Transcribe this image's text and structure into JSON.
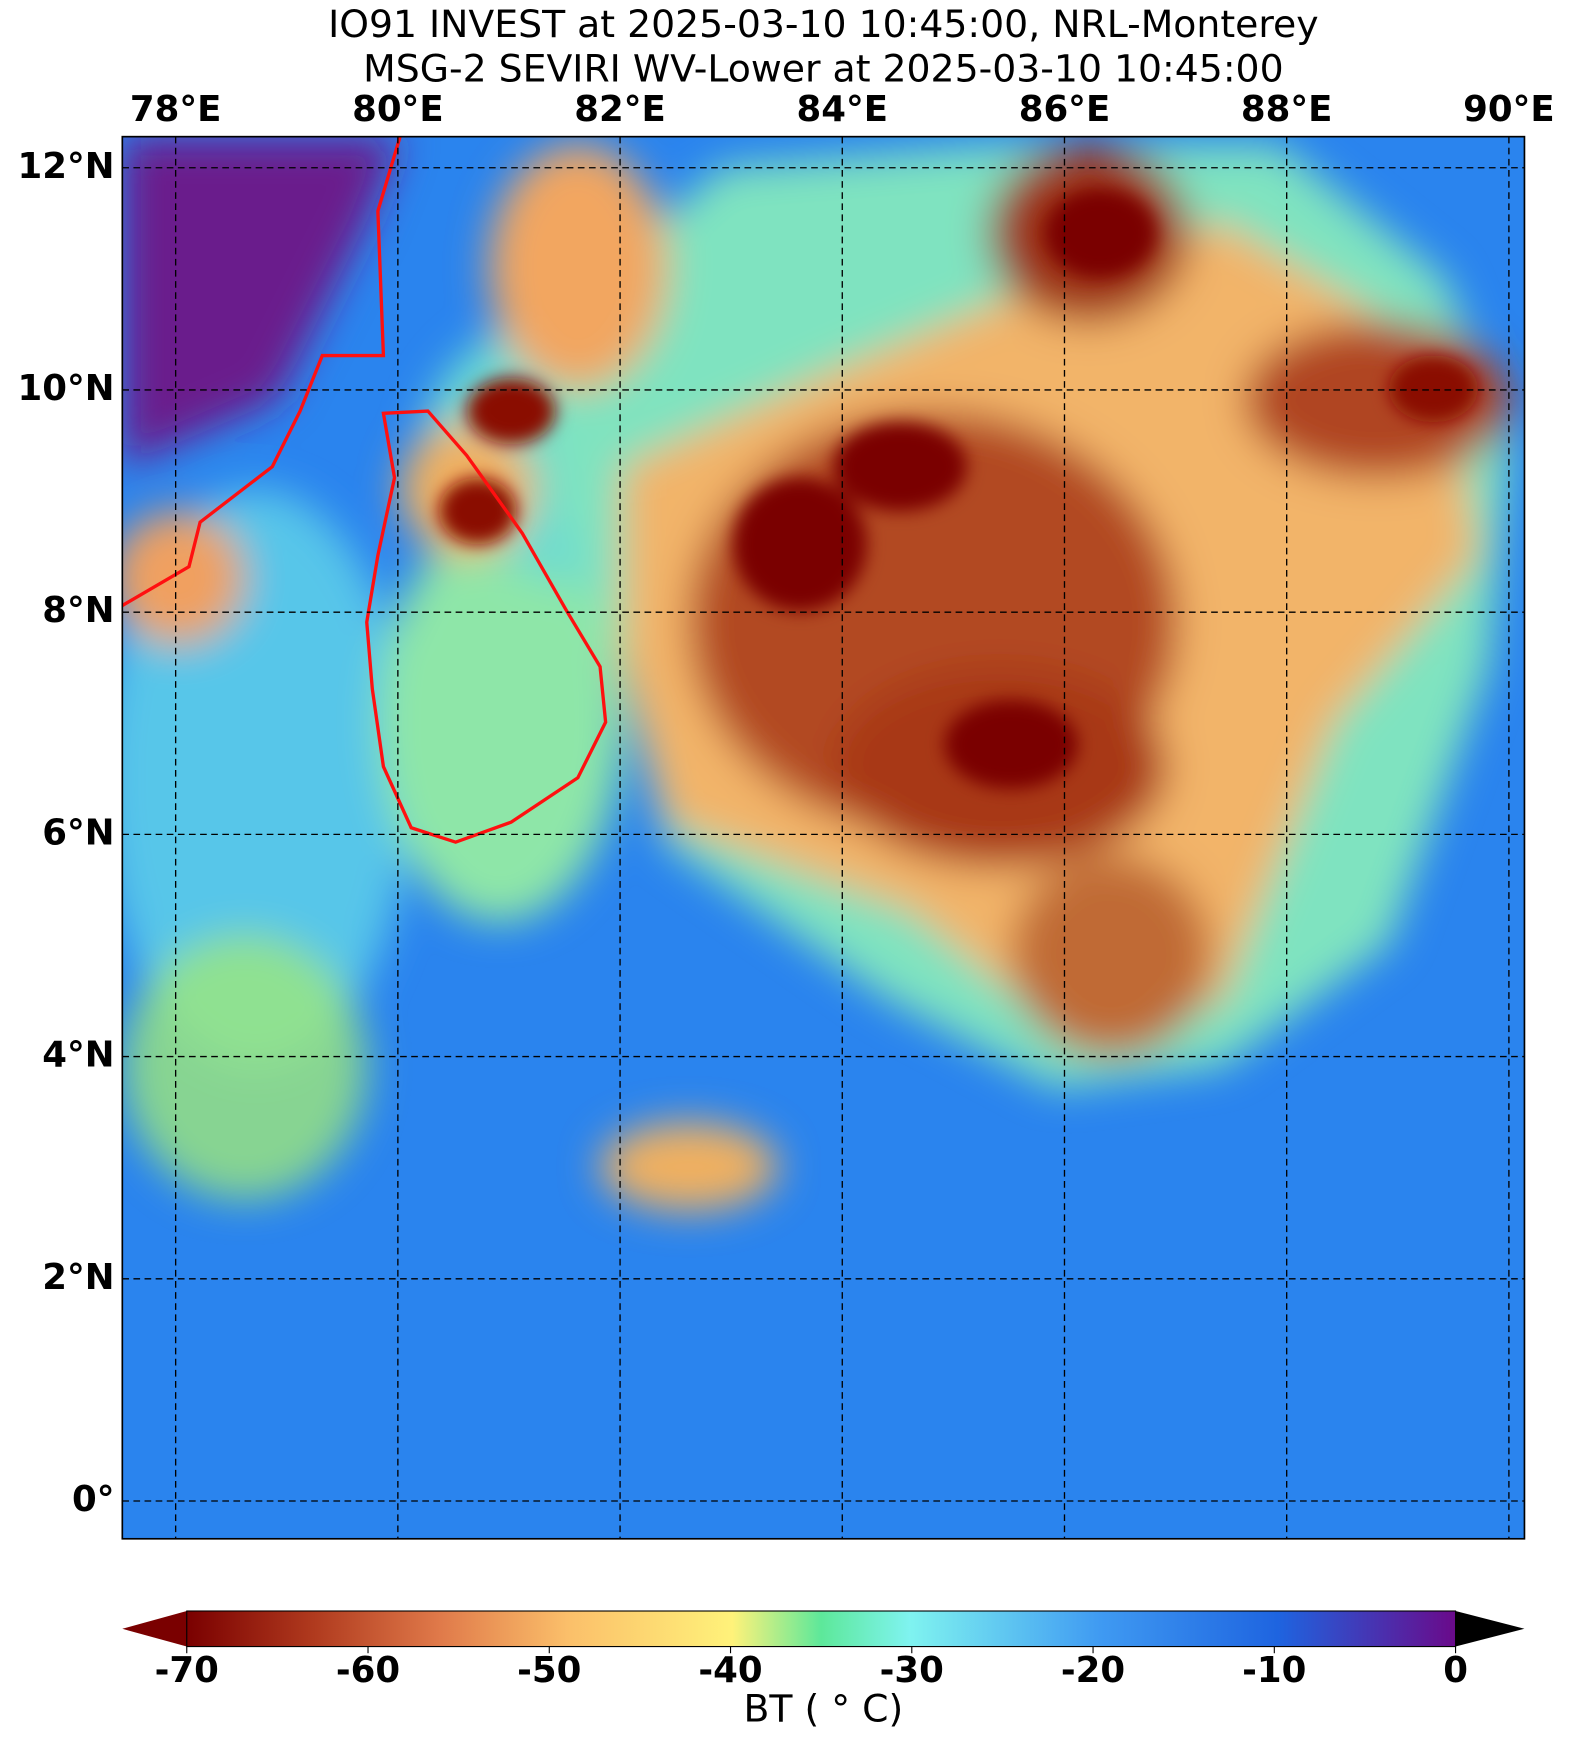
{
  "header": {
    "title": "IO91 INVEST at 2025-03-10 10:45:00, NRL-Monterey",
    "subtitle": "MSG-2 SEVIRI WV-Lower at 2025-03-10 10:45:00"
  },
  "map": {
    "xlim": [
      77.52,
      90.14
    ],
    "ylim": [
      -0.34,
      12.28
    ],
    "xticks": [
      {
        "value": 78,
        "label": "78°E"
      },
      {
        "value": 80,
        "label": "80°E"
      },
      {
        "value": 82,
        "label": "82°E"
      },
      {
        "value": 84,
        "label": "84°E"
      },
      {
        "value": 86,
        "label": "86°E"
      },
      {
        "value": 88,
        "label": "88°E"
      },
      {
        "value": 90,
        "label": "90°E"
      }
    ],
    "yticks": [
      {
        "value": 0,
        "label": "0°"
      },
      {
        "value": 2,
        "label": "2°N"
      },
      {
        "value": 4,
        "label": "4°N"
      },
      {
        "value": 6,
        "label": "6°N"
      },
      {
        "value": 8,
        "label": "8°N"
      },
      {
        "value": 10,
        "label": "10°N"
      },
      {
        "value": 12,
        "label": "12°N"
      }
    ],
    "grid": true
  },
  "colorbar": {
    "label": "BT ( ° C)",
    "lim": [
      -70,
      0
    ],
    "ticks": [
      -70,
      -60,
      -50,
      -40,
      -30,
      -20,
      -10,
      0
    ]
  }
}
